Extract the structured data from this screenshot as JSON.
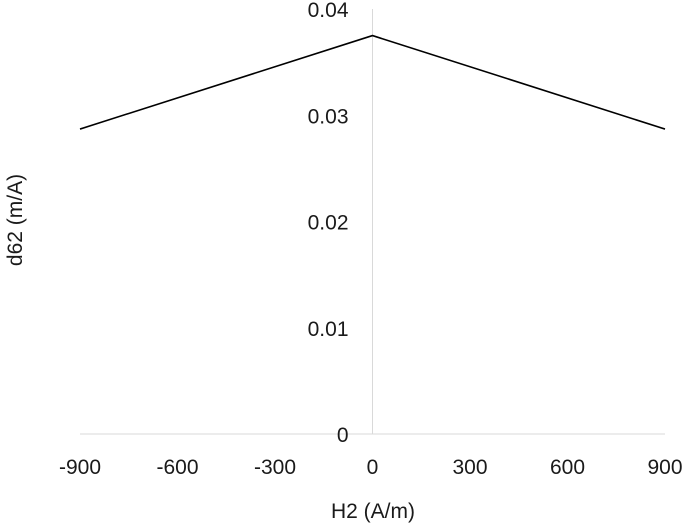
{
  "chart_data": {
    "type": "line",
    "title": "",
    "xlabel": "H2 (A/m)",
    "ylabel": "d62 (m/A)",
    "xlim": [
      -900,
      900
    ],
    "ylim": [
      0,
      0.04
    ],
    "x_ticks": [
      "-900",
      "-600",
      "-300",
      "0",
      "300",
      "600",
      "900"
    ],
    "y_ticks": [
      "0",
      "0.01",
      "0.02",
      "0.03",
      "0.04"
    ],
    "grid": false,
    "series": [
      {
        "x": [
          -900,
          0,
          900
        ],
        "y": [
          0.0287,
          0.0375,
          0.0287
        ],
        "color": "#000000"
      }
    ],
    "axis_color": "#d9d9d9"
  }
}
